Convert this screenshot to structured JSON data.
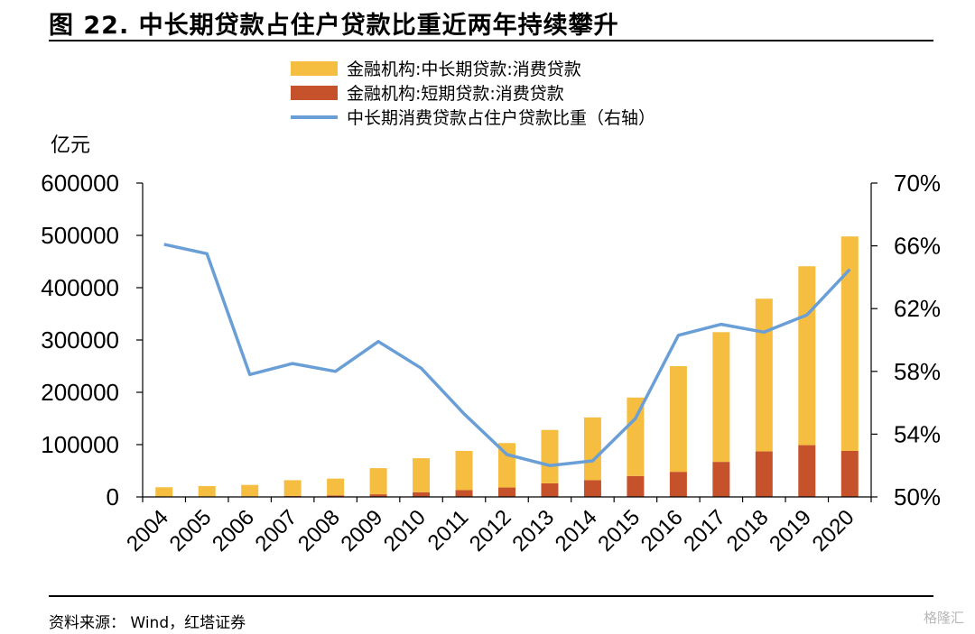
{
  "header": {
    "title": "图 22. 中长期贷款占住户贷款比重近两年持续攀升"
  },
  "footer": {
    "source": "资料来源：  Wind，红塔证券",
    "watermark": "格隆汇"
  },
  "chart_data": {
    "type": "bar",
    "stacked": true,
    "categories": [
      "2004",
      "2005",
      "2006",
      "2007",
      "2008",
      "2009",
      "2010",
      "2011",
      "2012",
      "2013",
      "2014",
      "2015",
      "2016",
      "2017",
      "2018",
      "2019",
      "2020"
    ],
    "left_axis": {
      "unit_label": "亿元",
      "ylim": [
        0,
        600000
      ],
      "ticks": [
        "0",
        "100000",
        "200000",
        "300000",
        "400000",
        "500000",
        "600000"
      ]
    },
    "right_axis": {
      "ylim": [
        0.5,
        0.7
      ],
      "ticks": [
        "50%",
        "54%",
        "58%",
        "62%",
        "66%",
        "70%"
      ]
    },
    "series": [
      {
        "name": "金融机构:中长期贷款:消费贷款",
        "type": "bar",
        "axis": "left",
        "color": "#F5BE41",
        "values": [
          18000,
          20000,
          22000,
          30000,
          32000,
          50000,
          65000,
          75000,
          85000,
          102000,
          120000,
          150000,
          202000,
          248000,
          292000,
          342000,
          410000
        ]
      },
      {
        "name": "金融机构:短期贷款:消费贷款",
        "type": "bar",
        "axis": "left",
        "color": "#C5522A",
        "values": [
          500,
          800,
          1000,
          2000,
          3000,
          5000,
          9000,
          13000,
          18000,
          26000,
          32000,
          40000,
          48000,
          67000,
          87000,
          99000,
          88000
        ]
      },
      {
        "name": "中长期消费贷款占住户贷款比重（右轴）",
        "type": "line",
        "axis": "right",
        "color": "#6A9ED6",
        "values": [
          0.661,
          0.655,
          0.578,
          0.585,
          0.58,
          0.599,
          0.582,
          0.553,
          0.527,
          0.52,
          0.523,
          0.55,
          0.603,
          0.61,
          0.605,
          0.616,
          0.645
        ]
      }
    ],
    "legend_position": "top-center",
    "grid": false
  }
}
